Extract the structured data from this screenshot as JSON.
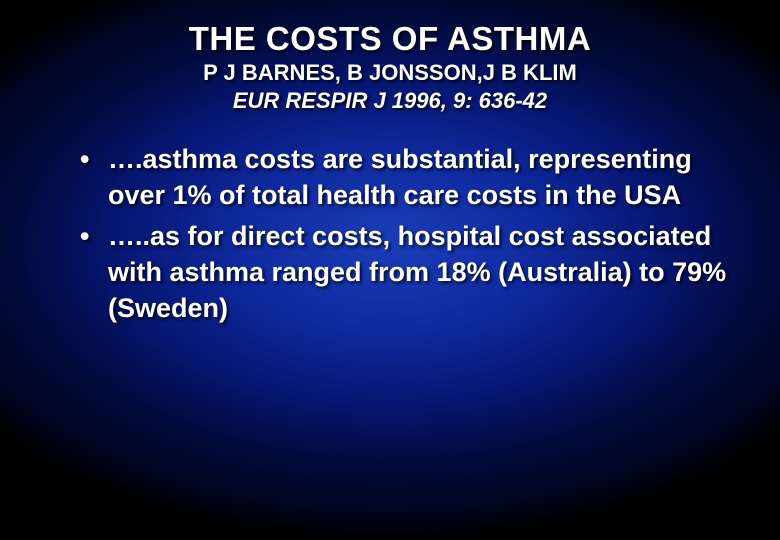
{
  "slide": {
    "title": "THE COSTS OF ASTHMA",
    "authors": "P J BARNES, B JONSSON,J B KLIM",
    "citation": "EUR RESPIR J 1996, 9: 636-42",
    "bullets": [
      "….asthma costs are substantial, representing over 1% of total health care costs in the USA",
      "…..as for direct costs, hospital cost associated with asthma ranged from 18% (Australia) to 79% (Sweden)"
    ],
    "colors": {
      "text": "#ffffff",
      "bg_center": "#1a3db8",
      "bg_mid": "#061570",
      "bg_edge": "#000000"
    },
    "fonts": {
      "title_size": 33,
      "subtitle_size": 22,
      "bullet_size": 27,
      "family": "Arial"
    }
  }
}
